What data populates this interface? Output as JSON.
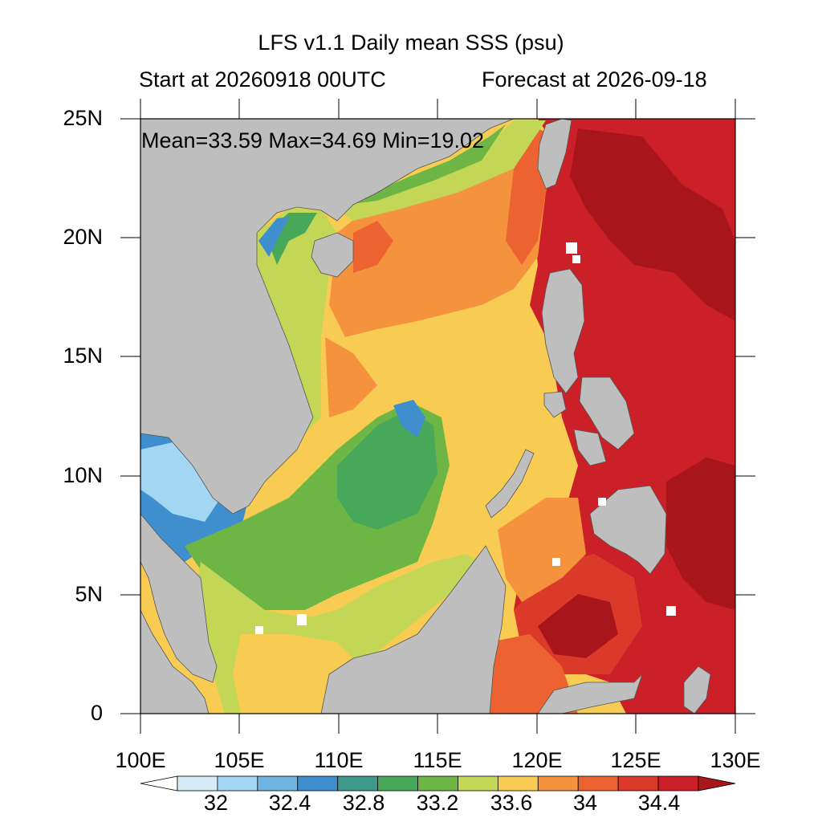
{
  "header": {
    "title": "LFS v1.1 Daily mean SSS (psu)",
    "start": "Start at 20260918 00UTC",
    "forecast": "Forecast at 2026-09-18"
  },
  "stats": {
    "text": "Mean=33.59  Max=34.69  Min=19.02",
    "mean": 33.59,
    "max": 34.69,
    "min": 19.02
  },
  "axes": {
    "lat_labels": [
      "25N",
      "20N",
      "15N",
      "10N",
      "5N",
      "0"
    ],
    "lon_labels": [
      "100E",
      "105E",
      "110E",
      "115E",
      "120E",
      "125E",
      "130E"
    ],
    "lat_range": [
      0,
      25
    ],
    "lon_range": [
      100,
      130
    ]
  },
  "colorbar": {
    "labels": [
      "32",
      "32.4",
      "32.8",
      "33.2",
      "33.6",
      "34",
      "34.4"
    ],
    "colors": [
      "#ffffff",
      "#d4ecf8",
      "#a3d6f2",
      "#6fb3e0",
      "#3f8fcf",
      "#3d9a8a",
      "#47a85a",
      "#6db645",
      "#c3d655",
      "#f8cc52",
      "#f4923e",
      "#ec6331",
      "#db3a2a",
      "#cc2028",
      "#a8161b"
    ]
  },
  "colors": {
    "land": "#bebebe",
    "north_open_sea": "#f6c64f",
    "philippine_sea": "#c91f27"
  }
}
